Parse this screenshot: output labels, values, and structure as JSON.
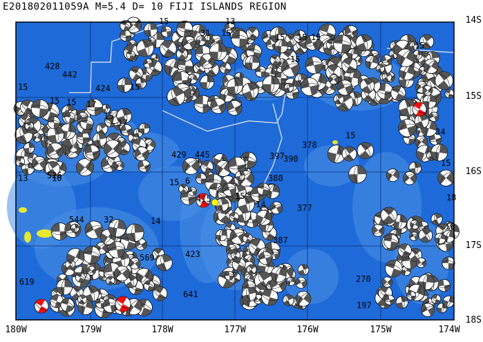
{
  "title": "E201802011059A  M=5.4 D=  10 FIJI ISLANDS REGION",
  "lat_labels": [
    "14S",
    "15S",
    "16S",
    "17S",
    "18S"
  ],
  "lon_labels": [
    "180W",
    "179W",
    "178W",
    "177W",
    "176W",
    "175W",
    "174W"
  ],
  "colors": {
    "ocean_deep": "#1e6ad8",
    "ocean_shallow": "#4a8fe6",
    "land": "#e8e830",
    "boundary": "#c8d8f0",
    "mechanism_dark": "#555555",
    "mechanism_highlight": "#ee1111",
    "event_marker": "#ffff00"
  },
  "depth_labels": [
    "15",
    "13",
    "31",
    "15",
    "428",
    "442",
    "424",
    "15",
    "15",
    "15",
    "15",
    "17",
    "15",
    "17",
    "10",
    "13",
    "526",
    "15",
    "544",
    "32",
    "14",
    "6",
    "429",
    "445",
    "415",
    "397",
    "390",
    "388",
    "378",
    "377",
    "387",
    "15",
    "14",
    "569",
    "423",
    "641",
    "619",
    "270",
    "197",
    "15",
    "15",
    "15",
    "15",
    "34",
    "15",
    "18",
    "16",
    "15",
    "15"
  ],
  "counts": {
    "mechanisms": 600
  }
}
